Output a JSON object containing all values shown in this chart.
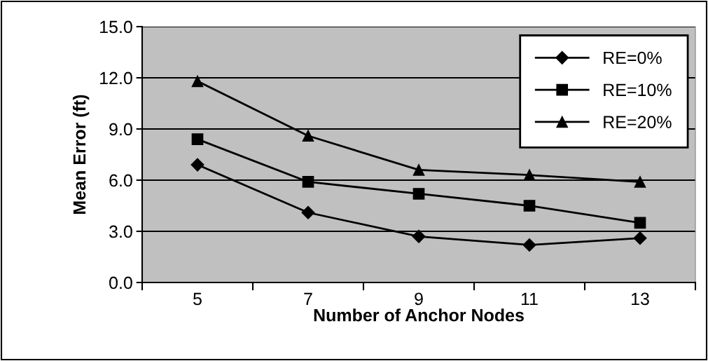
{
  "chart_data": {
    "type": "line",
    "xlabel": "Number of Anchor Nodes",
    "ylabel": "Mean Error (ft)",
    "categories": [
      "5",
      "7",
      "9",
      "11",
      "13"
    ],
    "series": [
      {
        "name": "RE=0%",
        "color": "#000000",
        "marker": "diamond",
        "values": [
          6.9,
          4.1,
          2.7,
          2.2,
          2.6
        ]
      },
      {
        "name": "RE=10%",
        "color": "#000000",
        "marker": "square",
        "values": [
          8.4,
          5.9,
          5.2,
          4.5,
          3.5
        ]
      },
      {
        "name": "RE=20%",
        "color": "#000000",
        "marker": "triangle",
        "values": [
          11.8,
          8.6,
          6.6,
          6.3,
          5.9
        ]
      }
    ],
    "ylim": [
      0,
      15
    ],
    "yticks": [
      {
        "value": 0,
        "label": "0.0"
      },
      {
        "value": 3,
        "label": "3.0"
      },
      {
        "value": 6,
        "label": "6.0"
      },
      {
        "value": 9,
        "label": "9.0"
      },
      {
        "value": 12,
        "label": "12.0"
      },
      {
        "value": 15,
        "label": "15.0"
      }
    ],
    "grid": "y",
    "legend": "top right",
    "line_style": "solid"
  }
}
